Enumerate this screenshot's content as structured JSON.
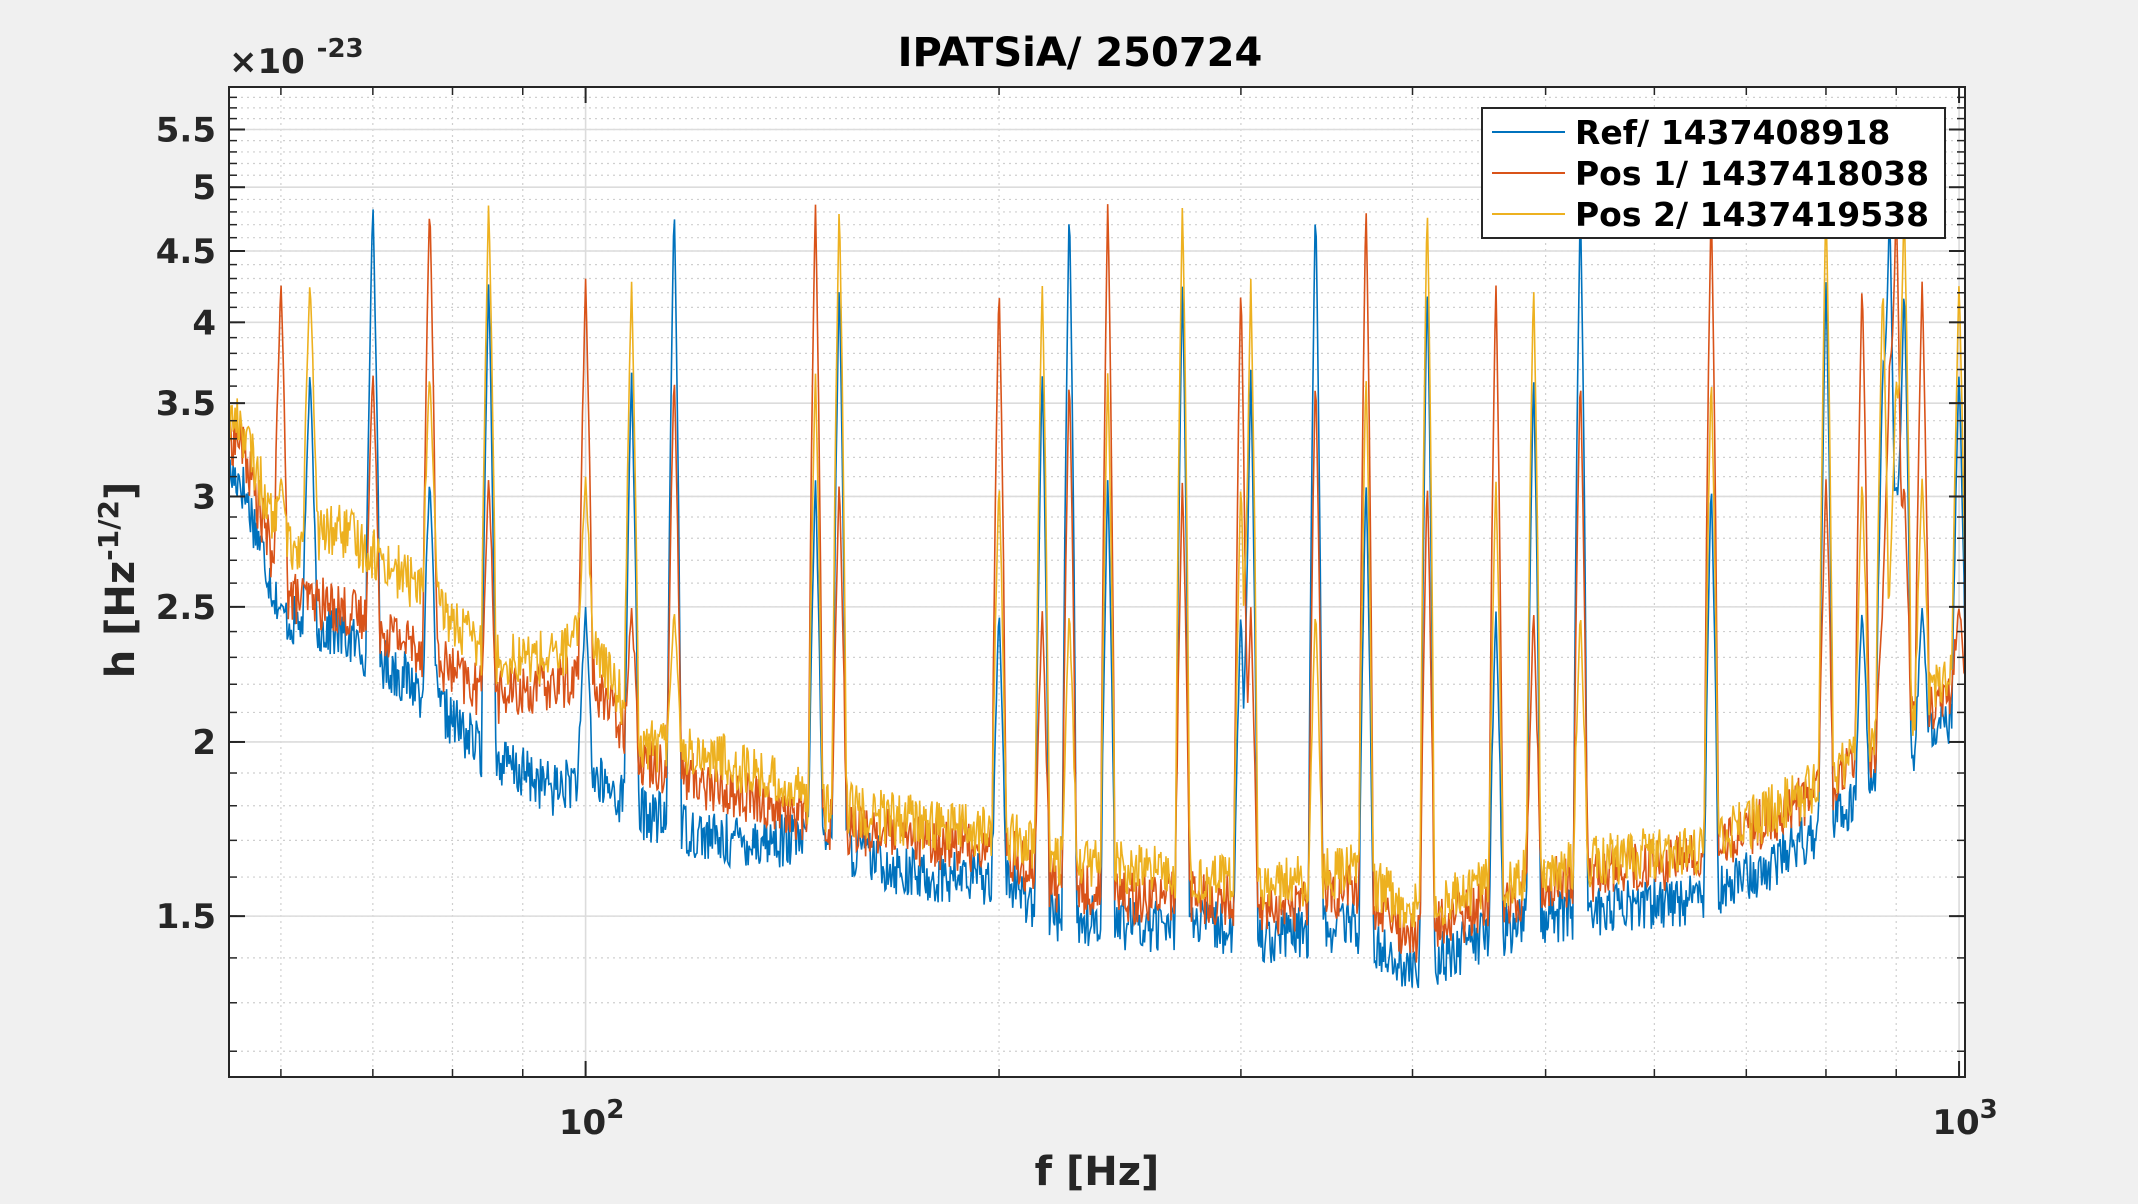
{
  "chart_data": {
    "type": "line",
    "title": "IPATSiA/ 250724",
    "xlabel": "f [Hz]",
    "ylabel_main": "h [Hz",
    "ylabel_sup": "-1/2",
    "ylabel_end": "]",
    "x_scale": "log",
    "y_scale": "log",
    "xlim": [
      55,
      1010
    ],
    "ylim": [
      1.15e-23,
      5.9e-23
    ],
    "grid": true,
    "minor_grid": true,
    "legend_position": "top-right",
    "y_exponent_label": {
      "base": "×10",
      "exp": "-23"
    },
    "x_ticks": [
      {
        "value": 100,
        "base": "10",
        "exp": "2"
      },
      {
        "value": 1000,
        "base": "10",
        "exp": "3"
      }
    ],
    "y_ticks": [
      {
        "value": 1.5,
        "label": "1.5"
      },
      {
        "value": 2,
        "label": "2"
      },
      {
        "value": 2.5,
        "label": "2.5"
      },
      {
        "value": 3,
        "label": "3"
      },
      {
        "value": 3.5,
        "label": "3.5"
      },
      {
        "value": 4,
        "label": "4"
      },
      {
        "value": 4.5,
        "label": "4.5"
      },
      {
        "value": 5,
        "label": "5"
      },
      {
        "value": 5.5,
        "label": "5.5"
      }
    ],
    "lines": [
      60,
      63,
      70,
      77,
      85,
      100,
      108,
      116,
      147,
      153,
      200,
      215,
      225,
      240,
      272,
      300,
      305,
      340,
      370,
      410,
      460,
      490,
      530,
      660,
      800,
      850,
      880,
      890,
      900,
      912,
      940,
      1000
    ],
    "series": [
      {
        "name": "Ref/ 1437408918",
        "color": "#0072BD",
        "baseline": [
          [
            56,
            3.1
          ],
          [
            60,
            2.45
          ],
          [
            66,
            2.4
          ],
          [
            75,
            2.2
          ],
          [
            85,
            1.95
          ],
          [
            95,
            1.85
          ],
          [
            100,
            1.9
          ],
          [
            110,
            1.78
          ],
          [
            125,
            1.7
          ],
          [
            150,
            1.7
          ],
          [
            175,
            1.6
          ],
          [
            200,
            1.6
          ],
          [
            220,
            1.5
          ],
          [
            250,
            1.48
          ],
          [
            280,
            1.48
          ],
          [
            320,
            1.45
          ],
          [
            360,
            1.48
          ],
          [
            400,
            1.37
          ],
          [
            450,
            1.45
          ],
          [
            500,
            1.5
          ],
          [
            560,
            1.52
          ],
          [
            650,
            1.55
          ],
          [
            720,
            1.62
          ],
          [
            800,
            1.75
          ],
          [
            900,
            1.92
          ],
          [
            1000,
            2.1
          ]
        ]
      },
      {
        "name": "Pos 1/ 1437418038",
        "color": "#D95319",
        "baseline": [
          [
            56,
            3.3
          ],
          [
            60,
            2.55
          ],
          [
            66,
            2.5
          ],
          [
            75,
            2.35
          ],
          [
            85,
            2.15
          ],
          [
            95,
            2.2
          ],
          [
            100,
            2.25
          ],
          [
            110,
            1.95
          ],
          [
            125,
            1.85
          ],
          [
            150,
            1.75
          ],
          [
            175,
            1.7
          ],
          [
            200,
            1.68
          ],
          [
            220,
            1.58
          ],
          [
            250,
            1.55
          ],
          [
            280,
            1.55
          ],
          [
            320,
            1.52
          ],
          [
            360,
            1.57
          ],
          [
            400,
            1.45
          ],
          [
            450,
            1.52
          ],
          [
            500,
            1.58
          ],
          [
            560,
            1.62
          ],
          [
            650,
            1.65
          ],
          [
            720,
            1.75
          ],
          [
            800,
            1.85
          ],
          [
            900,
            2.02
          ],
          [
            1000,
            2.2
          ]
        ]
      },
      {
        "name": "Pos 2/ 1437419538",
        "color": "#EDB120",
        "baseline": [
          [
            56,
            3.4
          ],
          [
            60,
            2.75
          ],
          [
            66,
            2.85
          ],
          [
            75,
            2.6
          ],
          [
            85,
            2.3
          ],
          [
            95,
            2.3
          ],
          [
            100,
            2.4
          ],
          [
            110,
            2.0
          ],
          [
            125,
            1.95
          ],
          [
            150,
            1.8
          ],
          [
            175,
            1.75
          ],
          [
            200,
            1.72
          ],
          [
            220,
            1.65
          ],
          [
            250,
            1.62
          ],
          [
            280,
            1.6
          ],
          [
            320,
            1.58
          ],
          [
            360,
            1.62
          ],
          [
            400,
            1.52
          ],
          [
            450,
            1.58
          ],
          [
            500,
            1.62
          ],
          [
            560,
            1.65
          ],
          [
            650,
            1.68
          ],
          [
            720,
            1.77
          ],
          [
            800,
            1.88
          ],
          [
            900,
            2.05
          ],
          [
            1000,
            2.25
          ]
        ]
      }
    ]
  }
}
